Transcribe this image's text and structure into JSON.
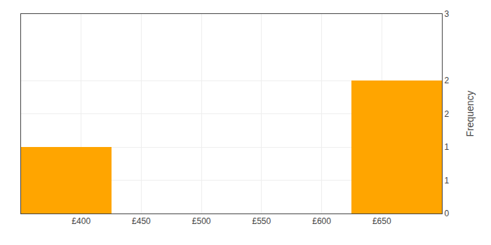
{
  "chart_data": {
    "type": "histogram",
    "bins": [
      350,
      425,
      475,
      525,
      575,
      625,
      700
    ],
    "counts": [
      1,
      0,
      0,
      0,
      0,
      2
    ],
    "color": "#FFA500",
    "xlim": [
      350,
      700
    ],
    "ylim": [
      0,
      3
    ],
    "xticks": [
      {
        "value": 400,
        "label": "£400"
      },
      {
        "value": 450,
        "label": "£450"
      },
      {
        "value": 500,
        "label": "£500"
      },
      {
        "value": 550,
        "label": "£550"
      },
      {
        "value": 600,
        "label": "£600"
      },
      {
        "value": 650,
        "label": "£650"
      }
    ],
    "yticks": [
      0,
      {
        "value": 0.5,
        "label": "1"
      },
      1,
      {
        "value": 1.5,
        "label": "2"
      },
      2,
      3
    ],
    "ylabel": "Frequency",
    "grid": true
  }
}
